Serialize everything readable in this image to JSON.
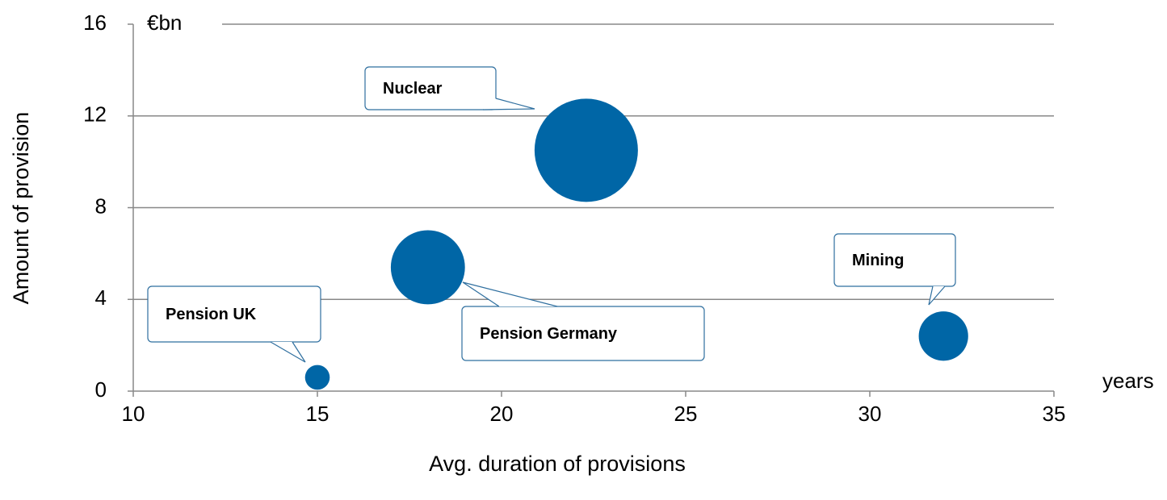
{
  "chart_data": {
    "type": "bubble",
    "y_axis_label": "Amount of provision",
    "x_axis_label": "Avg. duration of provisions",
    "y_unit": "€bn",
    "x_unit": "years",
    "labels": [
      "Nuclear",
      "Pension Germany",
      "Pension UK",
      "Mining"
    ],
    "x": [
      22.3,
      18,
      15,
      32
    ],
    "values": [
      10.5,
      5.4,
      0.6,
      2.4
    ],
    "color": "#0066a6",
    "xlim": [
      10,
      35
    ],
    "xticks": [
      10,
      15,
      20,
      25,
      30,
      35
    ],
    "ylim": [
      0,
      16
    ],
    "yticks": [
      0,
      4,
      8,
      12,
      16
    ],
    "grid": true
  }
}
